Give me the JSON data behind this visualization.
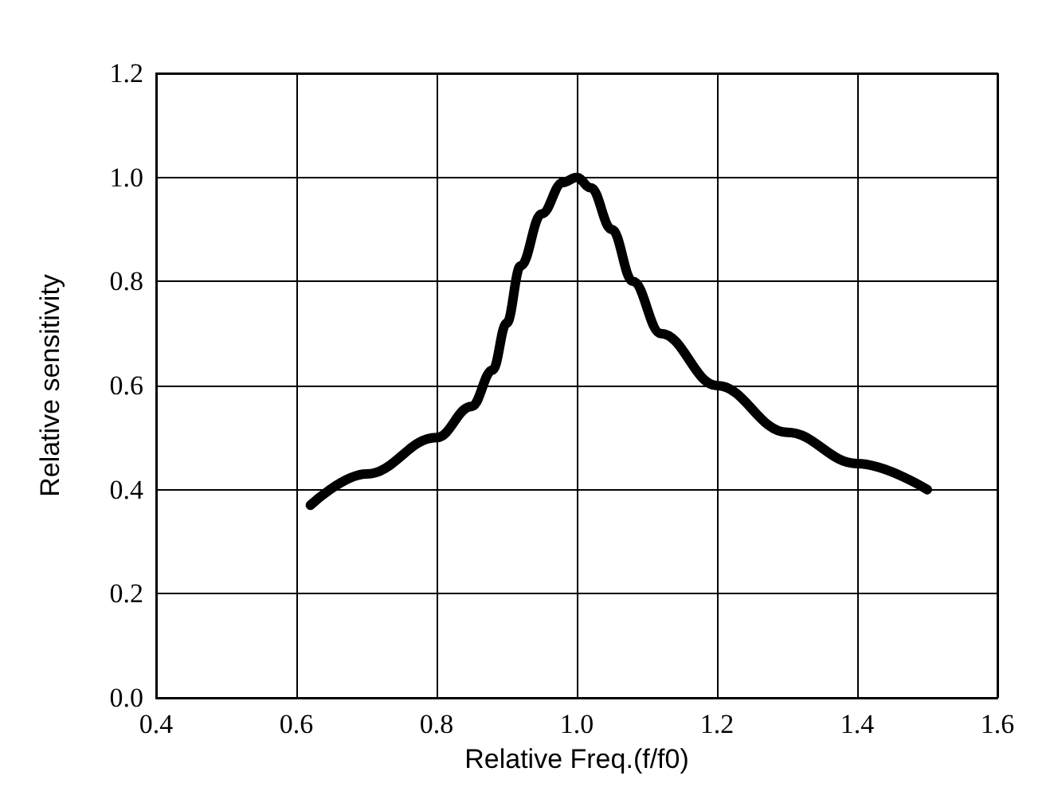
{
  "chart_data": {
    "type": "line",
    "xlabel": "Relative Freq.(f/f0)",
    "ylabel": "Relative sensitivity",
    "xlim": [
      0.4,
      1.6
    ],
    "xticks": [
      0.4,
      0.6,
      0.8,
      {
        "value": 1,
        "label": "1.0"
      },
      1.2,
      1.4,
      1.6
    ],
    "ylim": [
      0.0,
      1.2
    ],
    "yticks": [
      {
        "value": 0,
        "label": "0.0"
      },
      0.2,
      0.4,
      0.6,
      0.8,
      {
        "value": 1,
        "label": "1.0"
      },
      1.2
    ],
    "grid": true,
    "marker": "none",
    "line_style": "solid",
    "series": [
      {
        "color": "#000000",
        "x": [
          0.62,
          0.7,
          0.8,
          0.85,
          0.88,
          0.9,
          0.92,
          0.95,
          0.98,
          1.0,
          1.02,
          1.05,
          1.08,
          1.12,
          1.2,
          1.3,
          1.4,
          1.5
        ],
        "values": [
          0.37,
          0.43,
          0.5,
          0.56,
          0.63,
          0.72,
          0.83,
          0.93,
          0.99,
          1.0,
          0.98,
          0.9,
          0.8,
          0.7,
          0.6,
          0.51,
          0.45,
          0.4
        ]
      }
    ]
  }
}
